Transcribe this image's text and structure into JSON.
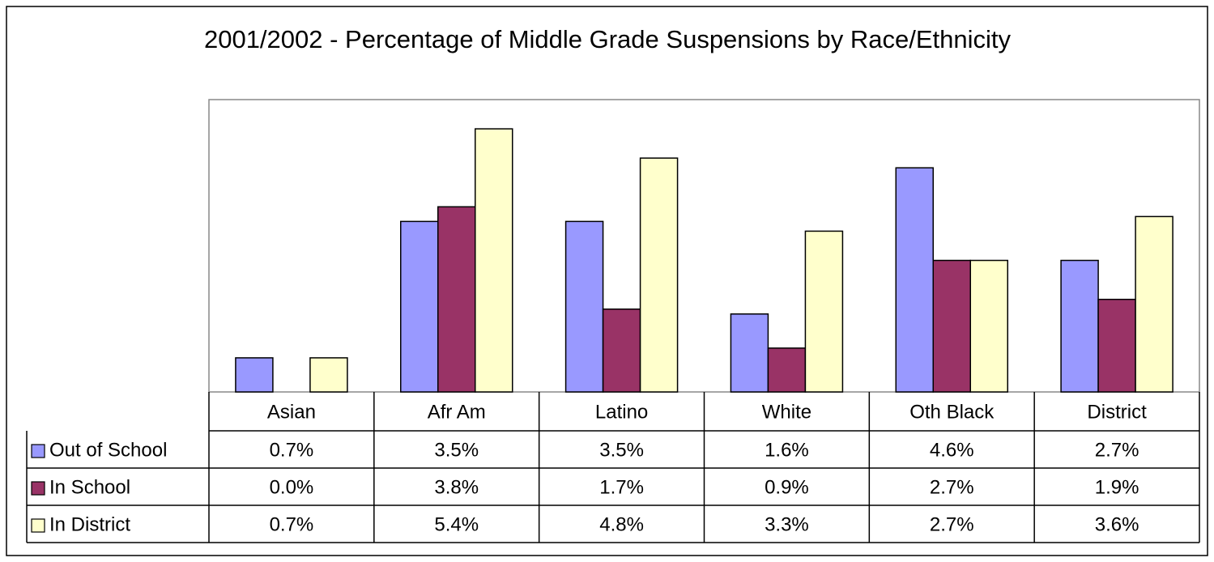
{
  "chart_data": {
    "type": "bar",
    "title": "2001/2002 - Percentage of Middle Grade Suspensions by Race/Ethnicity",
    "categories": [
      "Asian",
      "Afr Am",
      "Latino",
      "White",
      "Oth Black",
      "District"
    ],
    "series": [
      {
        "name": "Out of School",
        "color": "#9999ff",
        "values": [
          0.7,
          3.5,
          3.5,
          1.6,
          4.6,
          2.7
        ],
        "value_labels": [
          "0.7%",
          "3.5%",
          "3.5%",
          "1.6%",
          "4.6%",
          "2.7%"
        ]
      },
      {
        "name": "In School",
        "color": "#993366",
        "values": [
          0.0,
          3.8,
          1.7,
          0.9,
          2.7,
          1.9
        ],
        "value_labels": [
          "0.0%",
          "3.8%",
          "1.7%",
          "0.9%",
          "2.7%",
          "1.9%"
        ]
      },
      {
        "name": "In District",
        "color": "#ffffcc",
        "values": [
          0.7,
          5.4,
          4.8,
          3.3,
          2.7,
          3.6
        ],
        "value_labels": [
          "0.7%",
          "5.4%",
          "4.8%",
          "3.3%",
          "2.7%",
          "3.6%"
        ]
      }
    ],
    "ylim": [
      0,
      6
    ]
  }
}
